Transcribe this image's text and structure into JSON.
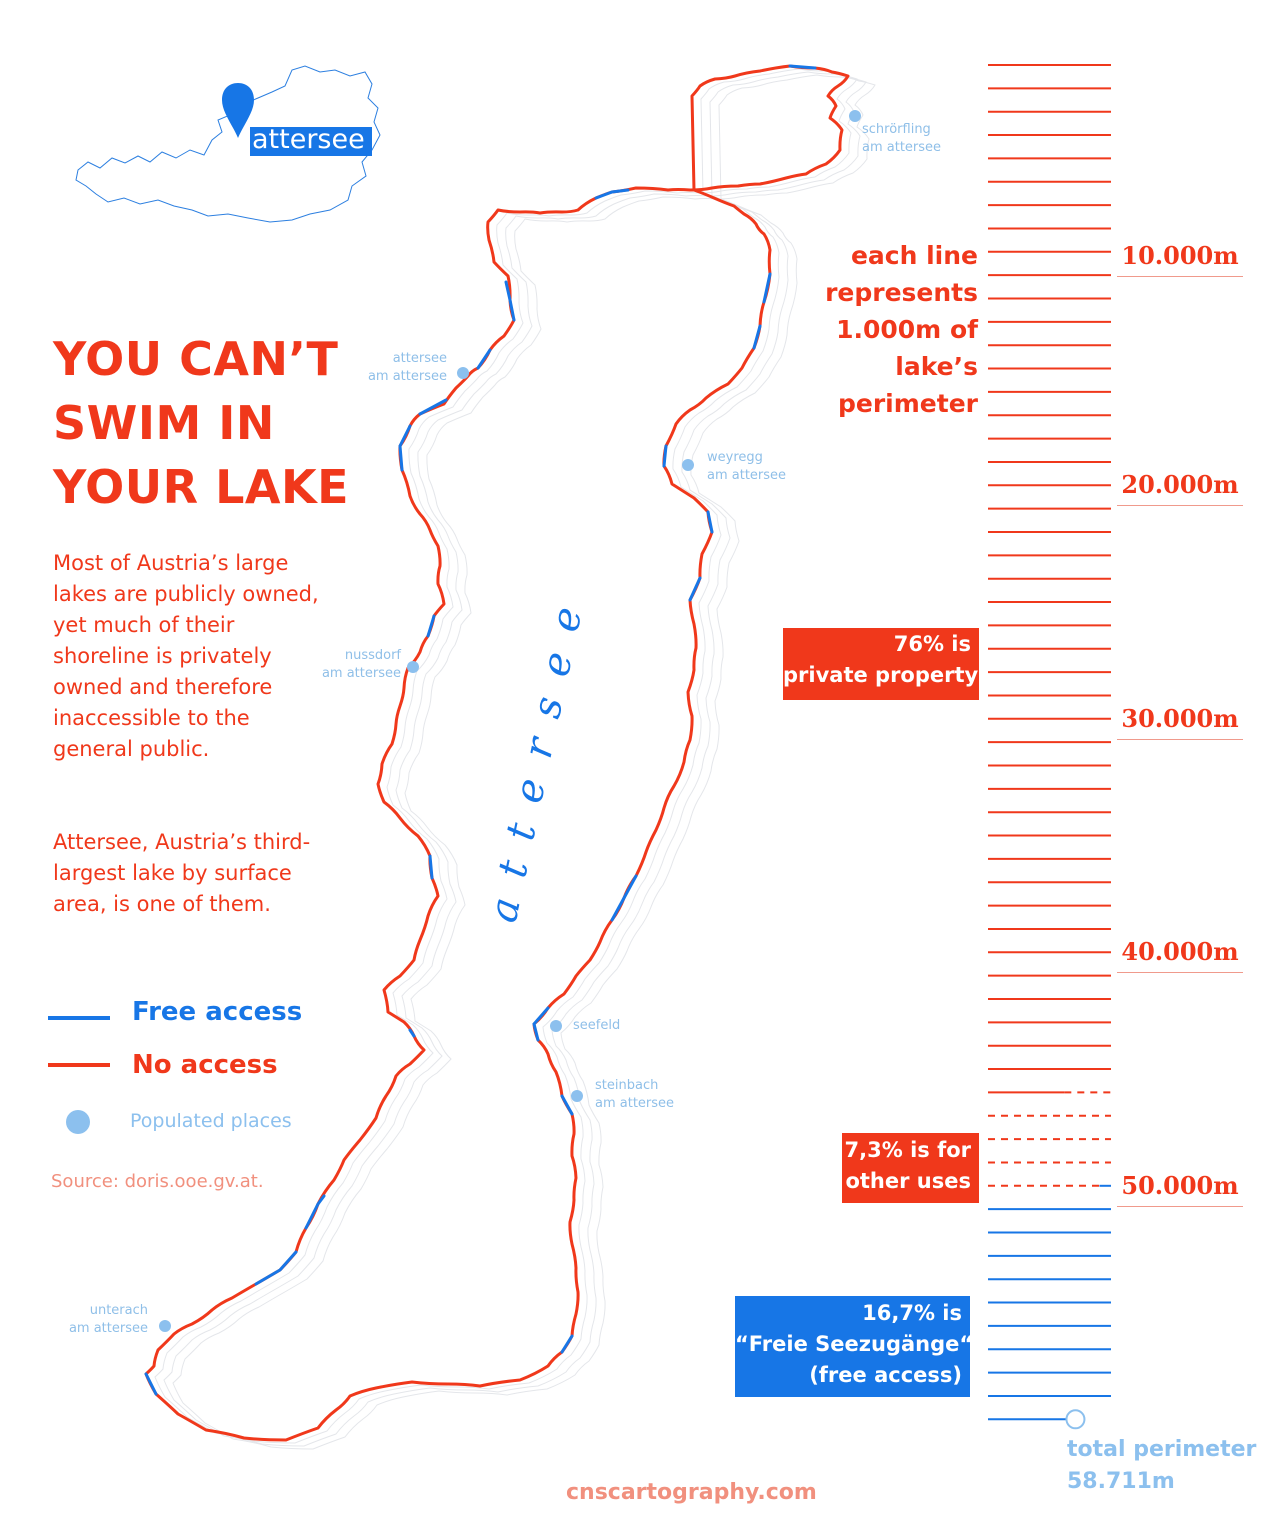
{
  "colors": {
    "red": "#f0381b",
    "blue": "#1776e6",
    "light_blue": "#8cc0ee",
    "source": "#f1907e"
  },
  "title_lines": [
    "YOU CAN’T",
    "SWIM IN",
    "YOUR LAKE"
  ],
  "description": {
    "paragraph1": "Most of Austria’s large lakes are publicly owned, yet much of their shoreline is privately owned and therefore inaccessible to the general public.",
    "paragraph2": "Attersee, Austria’s third-largest lake by surface area, is one of them."
  },
  "legend": {
    "free_access": "Free access",
    "no_access": "No access",
    "populated_places": "Populated places"
  },
  "source": "Source: doris.ooe.gv.at.",
  "inset_map": {
    "label": "attersee",
    "marker_icon": "location-pin-icon"
  },
  "lake_label": "attersee",
  "places": [
    {
      "id": "schrorfling",
      "name": "schrörfling\nam attersee"
    },
    {
      "id": "attersee",
      "name": "attersee\nam attersee"
    },
    {
      "id": "weyregg",
      "name": "weyregg\nam attersee"
    },
    {
      "id": "nussdorf",
      "name": "nussdorf\nam attersee"
    },
    {
      "id": "seefeld",
      "name": "seefeld"
    },
    {
      "id": "steinbach",
      "name": "steinbach\nam attersee"
    },
    {
      "id": "unterach",
      "name": "unterach\nam attersee"
    }
  ],
  "scale": {
    "note": "each line\nrepresents\n1.000m of\nlake’s\nperimeter",
    "distance_labels": [
      "10.000m",
      "20.000m",
      "30.000m",
      "40.000m",
      "50.000m"
    ],
    "total_label": "total perimeter\n58.711m",
    "total_perimeter_m": 58711,
    "meters_per_line": 1000,
    "private_share_pct": 76,
    "other_share_pct": 7.3,
    "free_share_pct": 16.7
  },
  "annotations": {
    "private": "76% is\nprivate property",
    "other": "7,3% is for\nother uses",
    "free": "16,7% is\n“Freie Seezugänge“\n(free access)"
  },
  "credit": "cnscartography.com"
}
